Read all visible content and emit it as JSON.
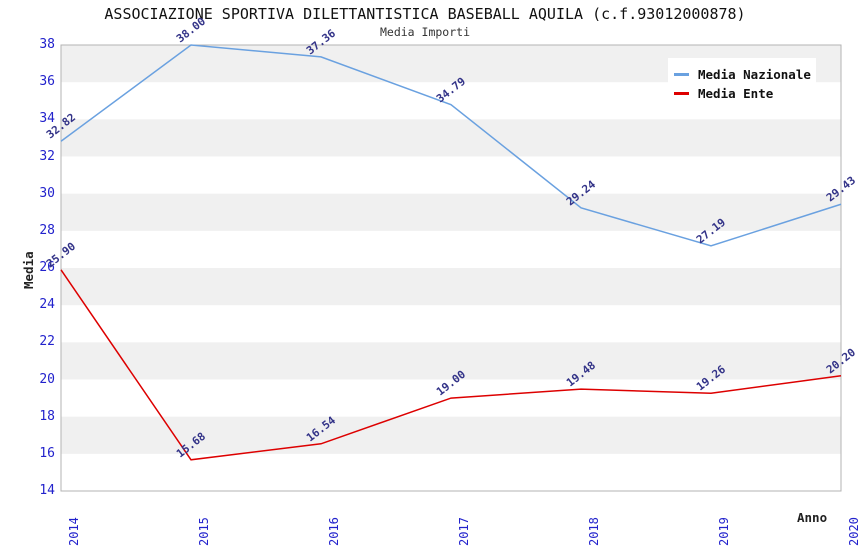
{
  "title": "ASSOCIAZIONE SPORTIVA DILETTANTISTICA BASEBALL AQUILA (c.f.93012000878)",
  "subtitle": "Media Importi",
  "chart_data": {
    "type": "line",
    "x": [
      2014,
      2015,
      2016,
      2017,
      2018,
      2019,
      2020
    ],
    "series": [
      {
        "name": "Media Nazionale",
        "color": "#6aa1e0",
        "values": [
          32.82,
          38.0,
          37.36,
          34.79,
          29.24,
          27.19,
          29.43
        ]
      },
      {
        "name": "Media Ente",
        "color": "#dd0000",
        "values": [
          25.9,
          15.68,
          16.54,
          19.0,
          19.48,
          19.26,
          20.2
        ]
      }
    ],
    "xlabel": "Anno",
    "ylabel": "Media",
    "ylim": [
      14,
      38
    ],
    "ytick_step": 2,
    "grid": "alternating-horizontal-bands",
    "legend_position": "top-right",
    "data_labels": "shown, 2 decimals, rotated",
    "colors": {
      "band": "#f0f0f0",
      "frame": "#b3b3b3",
      "tick_text": "#2222cc",
      "data_label_text": "#333388"
    }
  }
}
